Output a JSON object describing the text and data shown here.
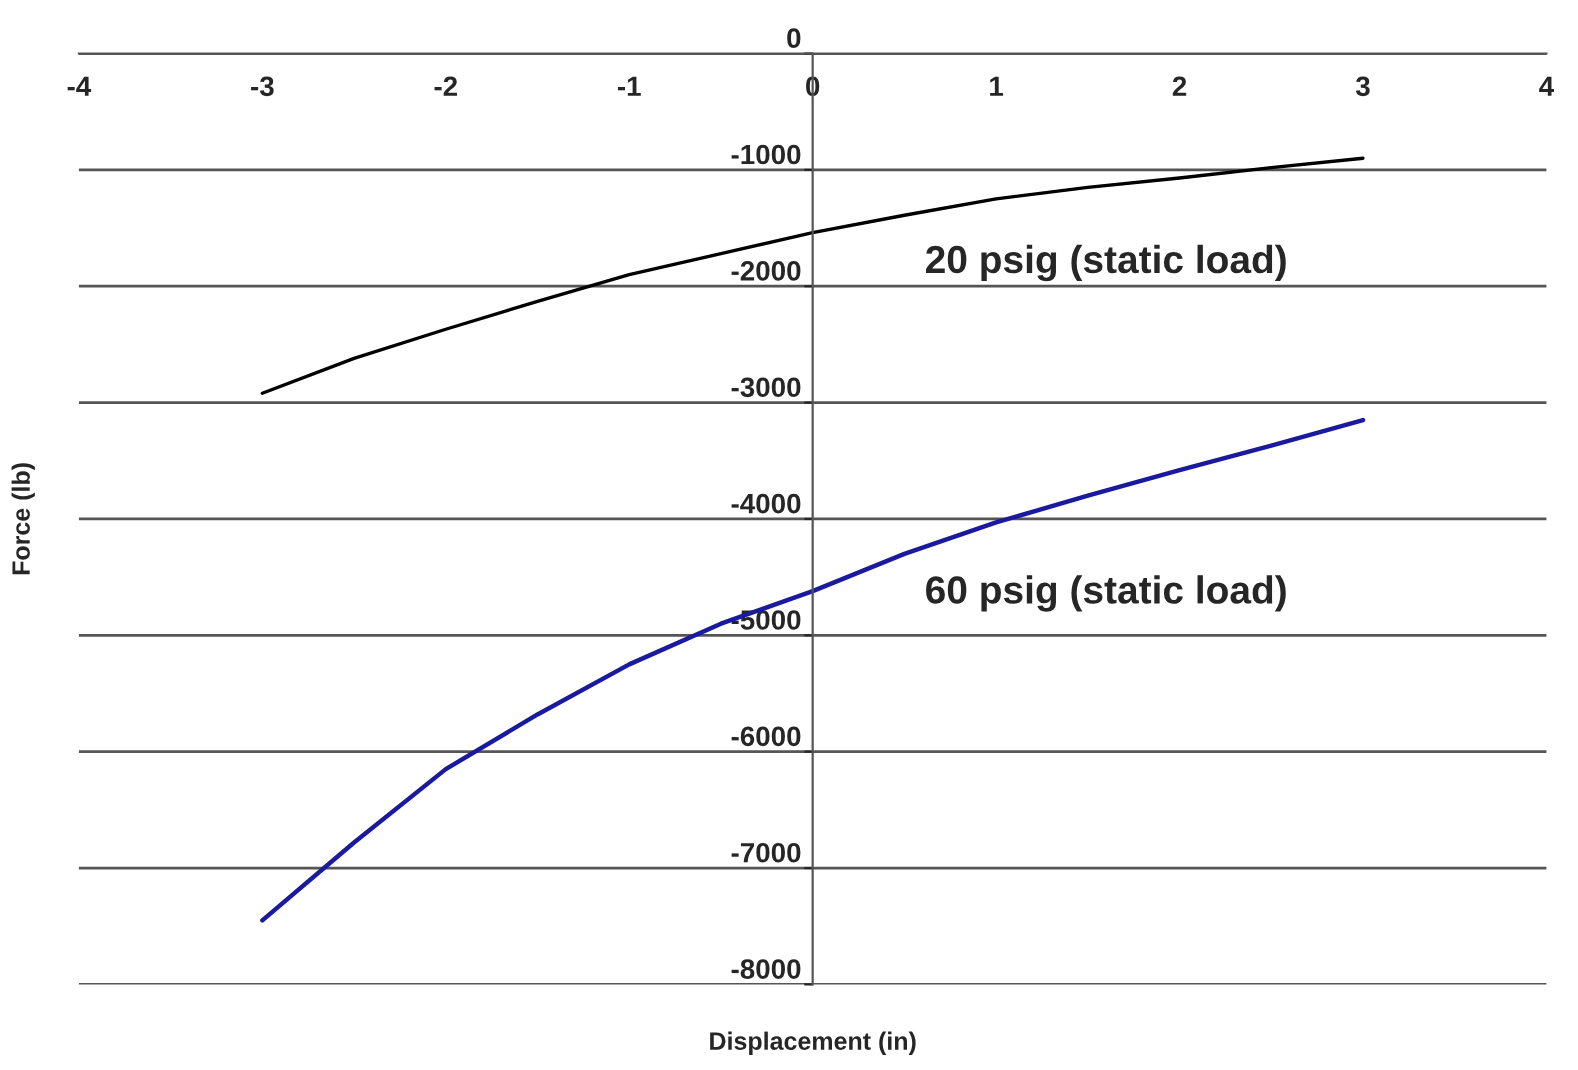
{
  "chart_data": {
    "type": "line",
    "xlabel": "Displacement (in)",
    "ylabel": "Force (lb)",
    "xlim": [
      -4,
      4
    ],
    "xticks": [
      -4,
      -3,
      -2,
      -1,
      0,
      1,
      2,
      3,
      4
    ],
    "ylim": [
      -8000,
      0
    ],
    "yticks": [
      -8000,
      -7000,
      -6000,
      -5000,
      -4000,
      -3000,
      -2000,
      -1000,
      0
    ],
    "grid": "y",
    "marker": "none",
    "line_style": "solid",
    "series": [
      {
        "color": "#000000",
        "x": [
          -3,
          -2.5,
          -2,
          -1.5,
          -1,
          -0.5,
          0,
          0.5,
          1,
          1.5,
          2,
          2.5,
          3
        ],
        "values": [
          -2920,
          -2620,
          -2370,
          -2130,
          -1900,
          -1720,
          -1540,
          -1390,
          -1250,
          -1150,
          -1070,
          -980,
          -900
        ]
      },
      {
        "color": "#1a1aa0",
        "x": [
          -3,
          -2.5,
          -2,
          -1.5,
          -1,
          -0.5,
          0,
          0.5,
          1,
          1.5,
          2,
          2.5,
          3
        ],
        "values": [
          -7450,
          -6780,
          -6150,
          -5680,
          -5250,
          -4900,
          -4620,
          -4300,
          -4030,
          -3800,
          -3580,
          -3370,
          -3150
        ]
      }
    ],
    "annotations": [
      "20 psig (static load)",
      "60 psig (static load)"
    ]
  }
}
